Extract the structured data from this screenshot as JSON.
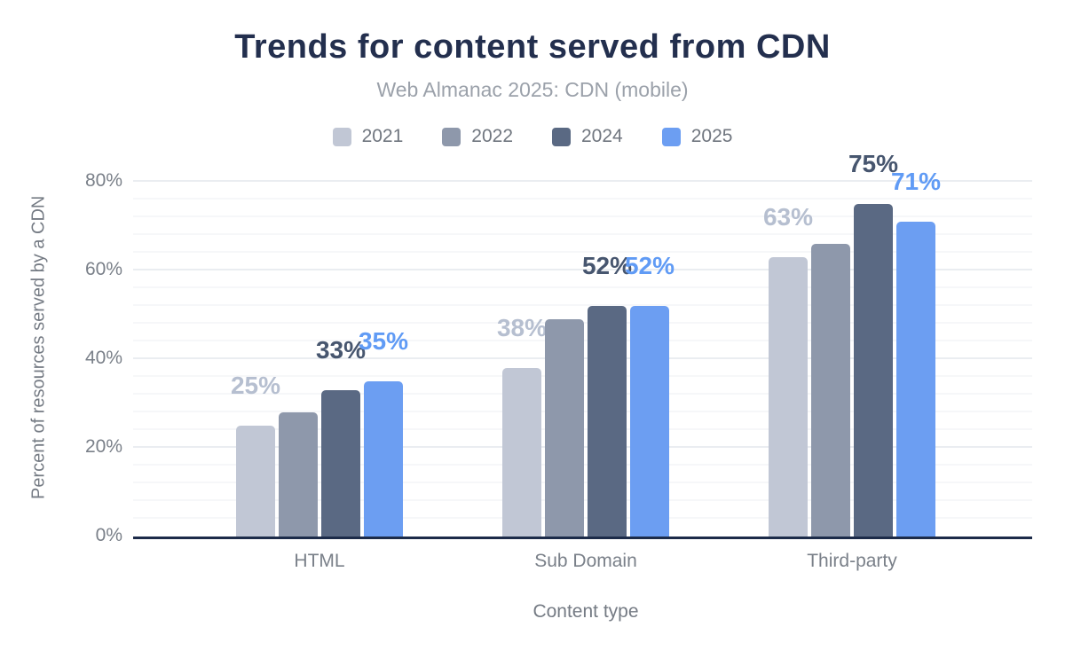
{
  "chart_data": {
    "type": "bar",
    "title": "Trends for content served from CDN",
    "subtitle": "Web Almanac 2025: CDN (mobile)",
    "xlabel": "Content type",
    "ylabel": "Percent of resources served by a CDN",
    "categories": [
      "HTML",
      "Sub Domain",
      "Third-party"
    ],
    "series": [
      {
        "name": "2021",
        "color": "#c1c7d5",
        "label_color": "#b6bfd0",
        "values": [
          25,
          38,
          63
        ],
        "labels": [
          "25%",
          "38%",
          "63%"
        ]
      },
      {
        "name": "2022",
        "color": "#8e98ab",
        "label_color": null,
        "values": [
          28,
          49,
          66
        ],
        "labels": null
      },
      {
        "name": "2024",
        "color": "#5a6983",
        "label_color": "#47566f",
        "values": [
          33,
          52,
          75
        ],
        "labels": [
          "33%",
          "52%",
          "75%"
        ]
      },
      {
        "name": "2025",
        "color": "#6c9ef2",
        "label_color": "#609bf5",
        "values": [
          35,
          52,
          71
        ],
        "labels": [
          "35%",
          "52%",
          "71%"
        ]
      }
    ],
    "ylim": [
      0,
      80
    ],
    "yticks": [
      "0%",
      "20%",
      "40%",
      "60%",
      "80%"
    ],
    "ytick_values": [
      0,
      20,
      40,
      60,
      80
    ],
    "minor_grid_step": 4,
    "grid": true,
    "legend_position": "top"
  },
  "colors": {
    "background": "#ffffff",
    "title_text": "#232f4e",
    "subtitle_text": "#9ba1aa",
    "axis_text": "#7a8089",
    "axis_title_text": "#757b84",
    "axis_line": "#1c2b49",
    "grid_major": "#eaedf1",
    "grid_minor": "#f6f7f9"
  }
}
